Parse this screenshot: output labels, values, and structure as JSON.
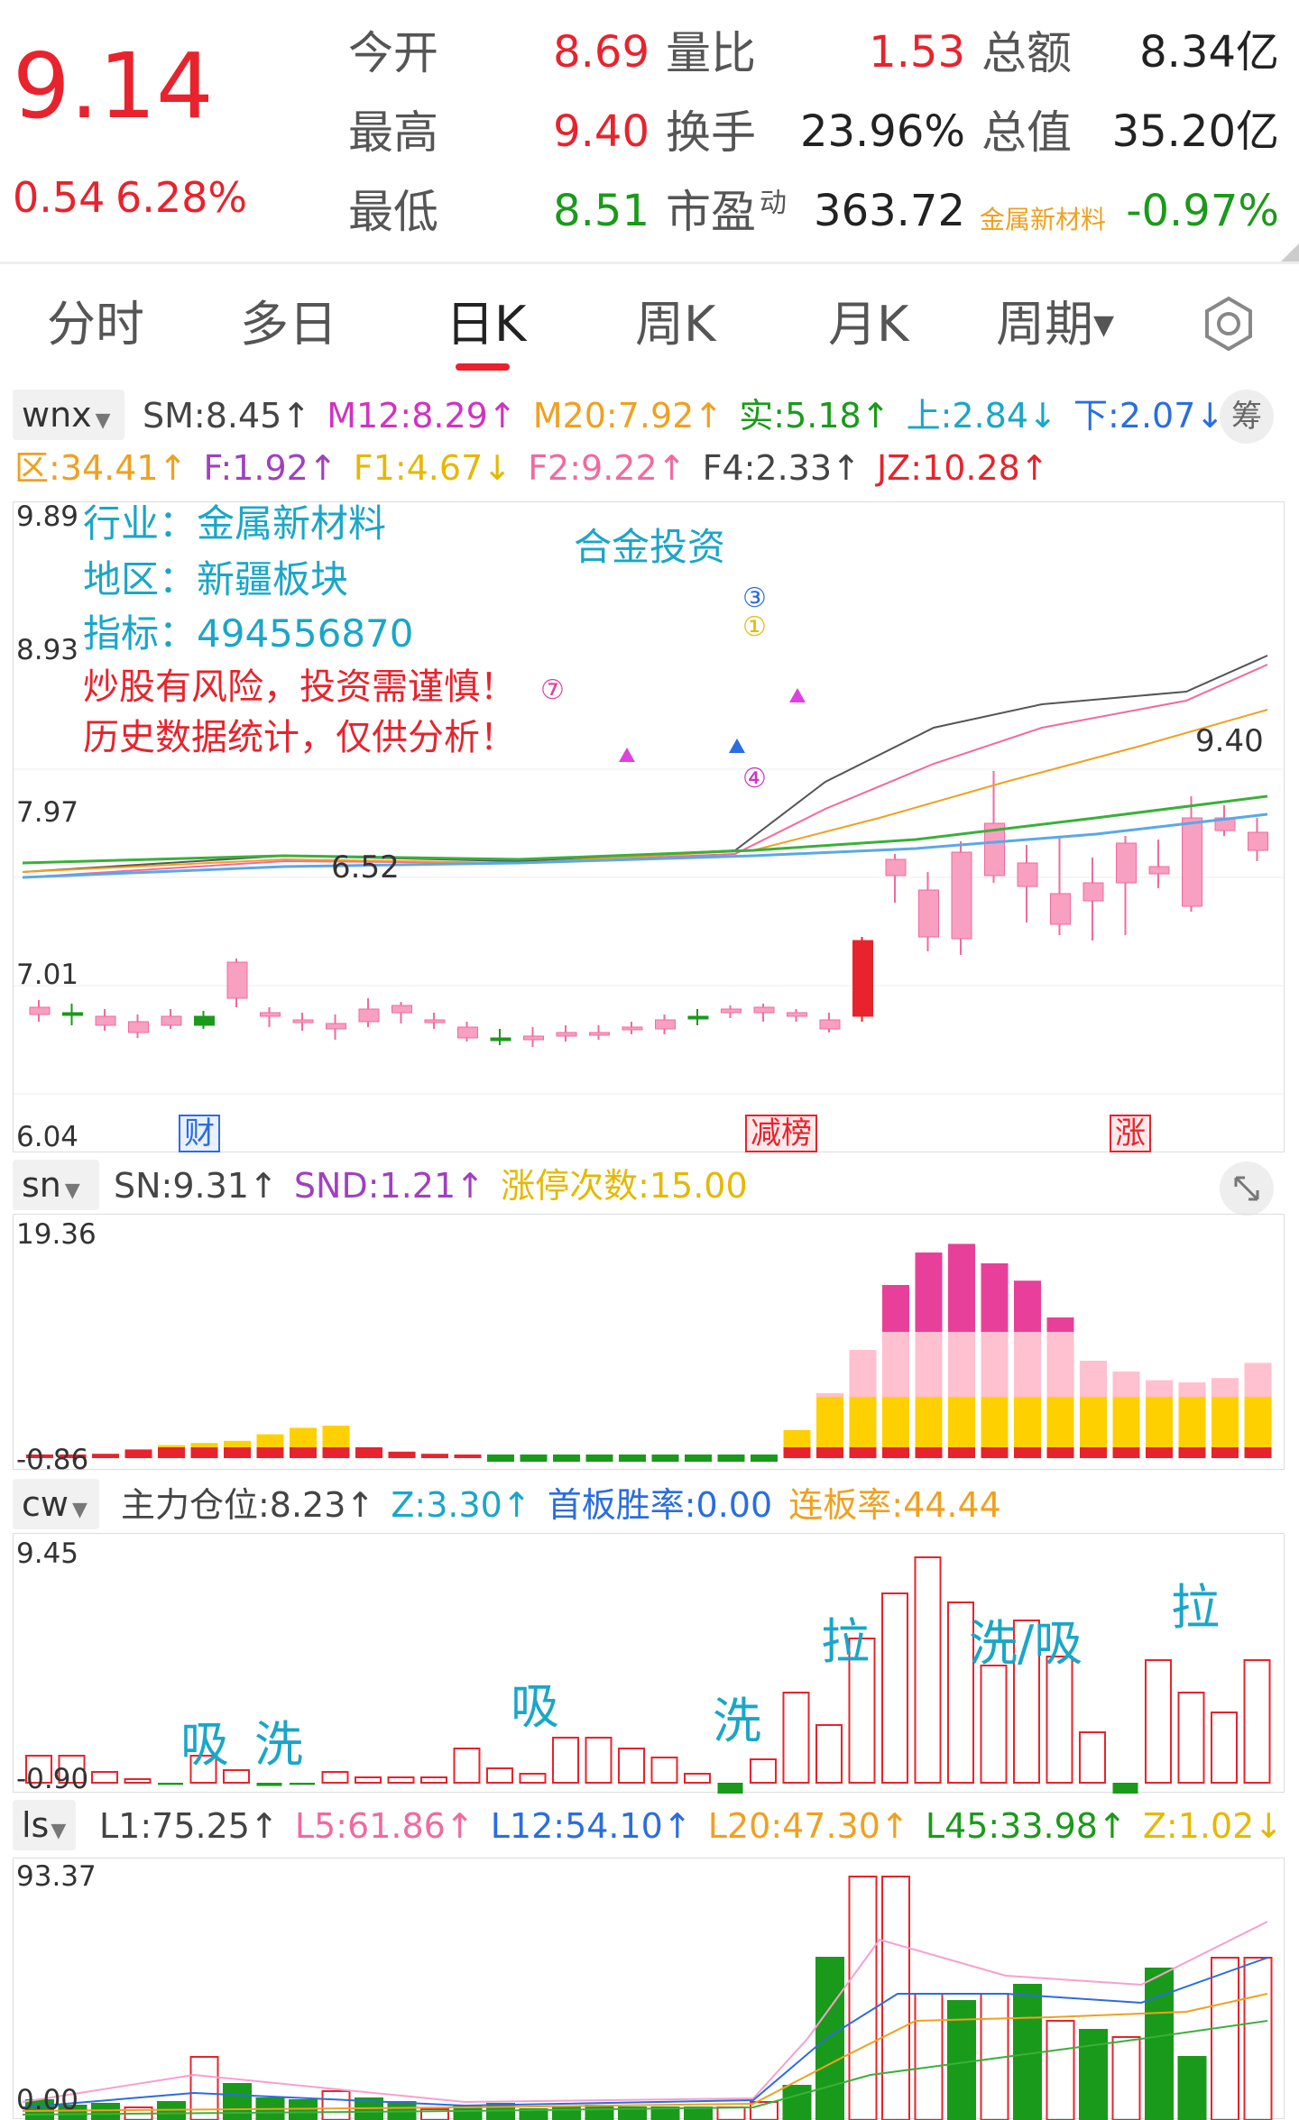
{
  "quote": {
    "price": "9.14",
    "change": "0.54",
    "change_pct": "6.28%",
    "rows": [
      [
        {
          "label": "今开",
          "value": "8.69",
          "color": "red"
        },
        {
          "label": "量比",
          "value": "1.53",
          "color": "red"
        },
        {
          "label": "总额",
          "value": "8.34亿",
          "color": "dark"
        }
      ],
      [
        {
          "label": "最高",
          "value": "9.40",
          "color": "red"
        },
        {
          "label": "换手",
          "value": "23.96%",
          "color": "dark"
        },
        {
          "label": "总值",
          "value": "35.20亿",
          "color": "dark"
        }
      ],
      [
        {
          "label": "最低",
          "value": "8.51",
          "color": "green"
        },
        {
          "label": "市盈",
          "value": "363.72",
          "color": "dark"
        },
        {
          "label": "金属新材料",
          "value": "-0.97%",
          "color": "green"
        }
      ]
    ],
    "pe_superscript": "动"
  },
  "tabs": [
    "分时",
    "多日",
    "日K",
    "周K",
    "月K",
    "周期"
  ],
  "active_tab": "日K",
  "wnx": {
    "selector": "wnx",
    "items": [
      "SM:8.45↑",
      "M12:8.29↑",
      "M20:7.92↑",
      "实:5.18↑",
      "上:2.84↓",
      "下:2.07↓"
    ],
    "items2": [
      "区:34.41↑",
      "F:1.92↑",
      "F1:4.67↓",
      "F2:9.22↑",
      "F4:2.33↑",
      "JZ:10.28↑"
    ],
    "chip_button": "筹"
  },
  "kline": {
    "axis": [
      "9.89",
      "8.93",
      "7.97",
      "7.01",
      "6.04"
    ],
    "industry": "行业：金属新材料",
    "region": "地区：新疆板块",
    "indicator": "指标：494556870",
    "note": "合金投资",
    "warn1": "炒股有风险，投资需谨慎！",
    "warn2": "历史数据统计，仅供分析！",
    "high_label": "9.40",
    "low_label": "6.52",
    "tags": [
      "财",
      "减榜",
      "涨"
    ],
    "markers": [
      "⑦",
      "③",
      "①",
      "④"
    ]
  },
  "sn": {
    "selector": "sn",
    "items": [
      "SN:9.31↑",
      "SND:1.21↑",
      "涨停次数:15.00"
    ],
    "axis": [
      "19.36",
      "-0.86"
    ]
  },
  "cw": {
    "selector": "cw",
    "items": [
      "主力仓位:8.23↑",
      "Z:3.30↑",
      "首板胜率:0.00",
      "连板率:44.44"
    ],
    "axis": [
      "9.45",
      "-0.90"
    ],
    "labels": [
      "吸",
      "洗",
      "吸",
      "洗",
      "拉",
      "洗/吸",
      "拉"
    ]
  },
  "ls": {
    "selector": "ls",
    "items": [
      "L1:75.25↑",
      "L5:61.86↑",
      "L12:54.10↑",
      "L20:47.30↑",
      "L45:33.98↑",
      "Z:1.02↓"
    ],
    "axis": [
      "93.37",
      "0.00"
    ]
  },
  "colors": {
    "up": "#e8232d",
    "down": "#1a9a1a",
    "pink": "#f06aa0",
    "orange": "#f0a020",
    "cyan": "#1aa6c8",
    "blue": "#2a6de0",
    "magenta": "#d033c0",
    "yellow": "#e6b800"
  }
}
